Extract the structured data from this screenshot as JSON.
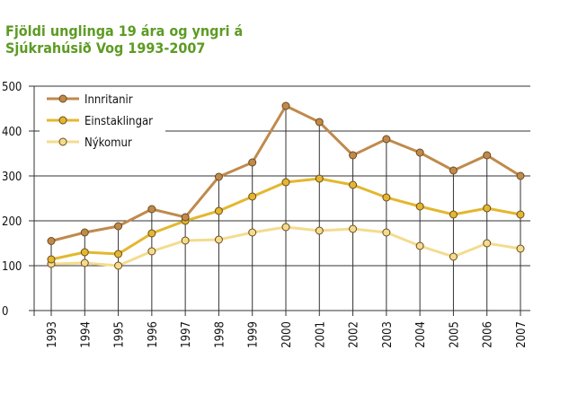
{
  "chart_data": {
    "type": "line",
    "title": [
      "Fjöldi unglinga 19 ára og yngri á",
      "Sjúkrahúsið Vog 1993-2007"
    ],
    "categories": [
      "1993",
      "1994",
      "1995",
      "1996",
      "1997",
      "1998",
      "1999",
      "2000",
      "2001",
      "2002",
      "2003",
      "2004",
      "2005",
      "2006",
      "2007"
    ],
    "series": [
      {
        "name": "Innritanir",
        "color": "#c08a4c",
        "values": [
          155,
          174,
          188,
          226,
          208,
          298,
          330,
          456,
          420,
          346,
          382,
          352,
          312,
          346,
          300
        ]
      },
      {
        "name": "Einstaklingar",
        "color": "#e3b72f",
        "values": [
          114,
          130,
          126,
          172,
          200,
          222,
          254,
          286,
          294,
          280,
          252,
          232,
          214,
          228,
          214
        ]
      },
      {
        "name": "Nýkomur",
        "color": "#f4dc8e",
        "values": [
          104,
          106,
          100,
          132,
          156,
          158,
          174,
          186,
          178,
          182,
          174,
          144,
          120,
          150,
          138
        ]
      }
    ],
    "ylim": [
      0,
      500
    ],
    "yticks": [
      0,
      100,
      200,
      300,
      400,
      500
    ],
    "grid": true,
    "legend": "top-left"
  }
}
